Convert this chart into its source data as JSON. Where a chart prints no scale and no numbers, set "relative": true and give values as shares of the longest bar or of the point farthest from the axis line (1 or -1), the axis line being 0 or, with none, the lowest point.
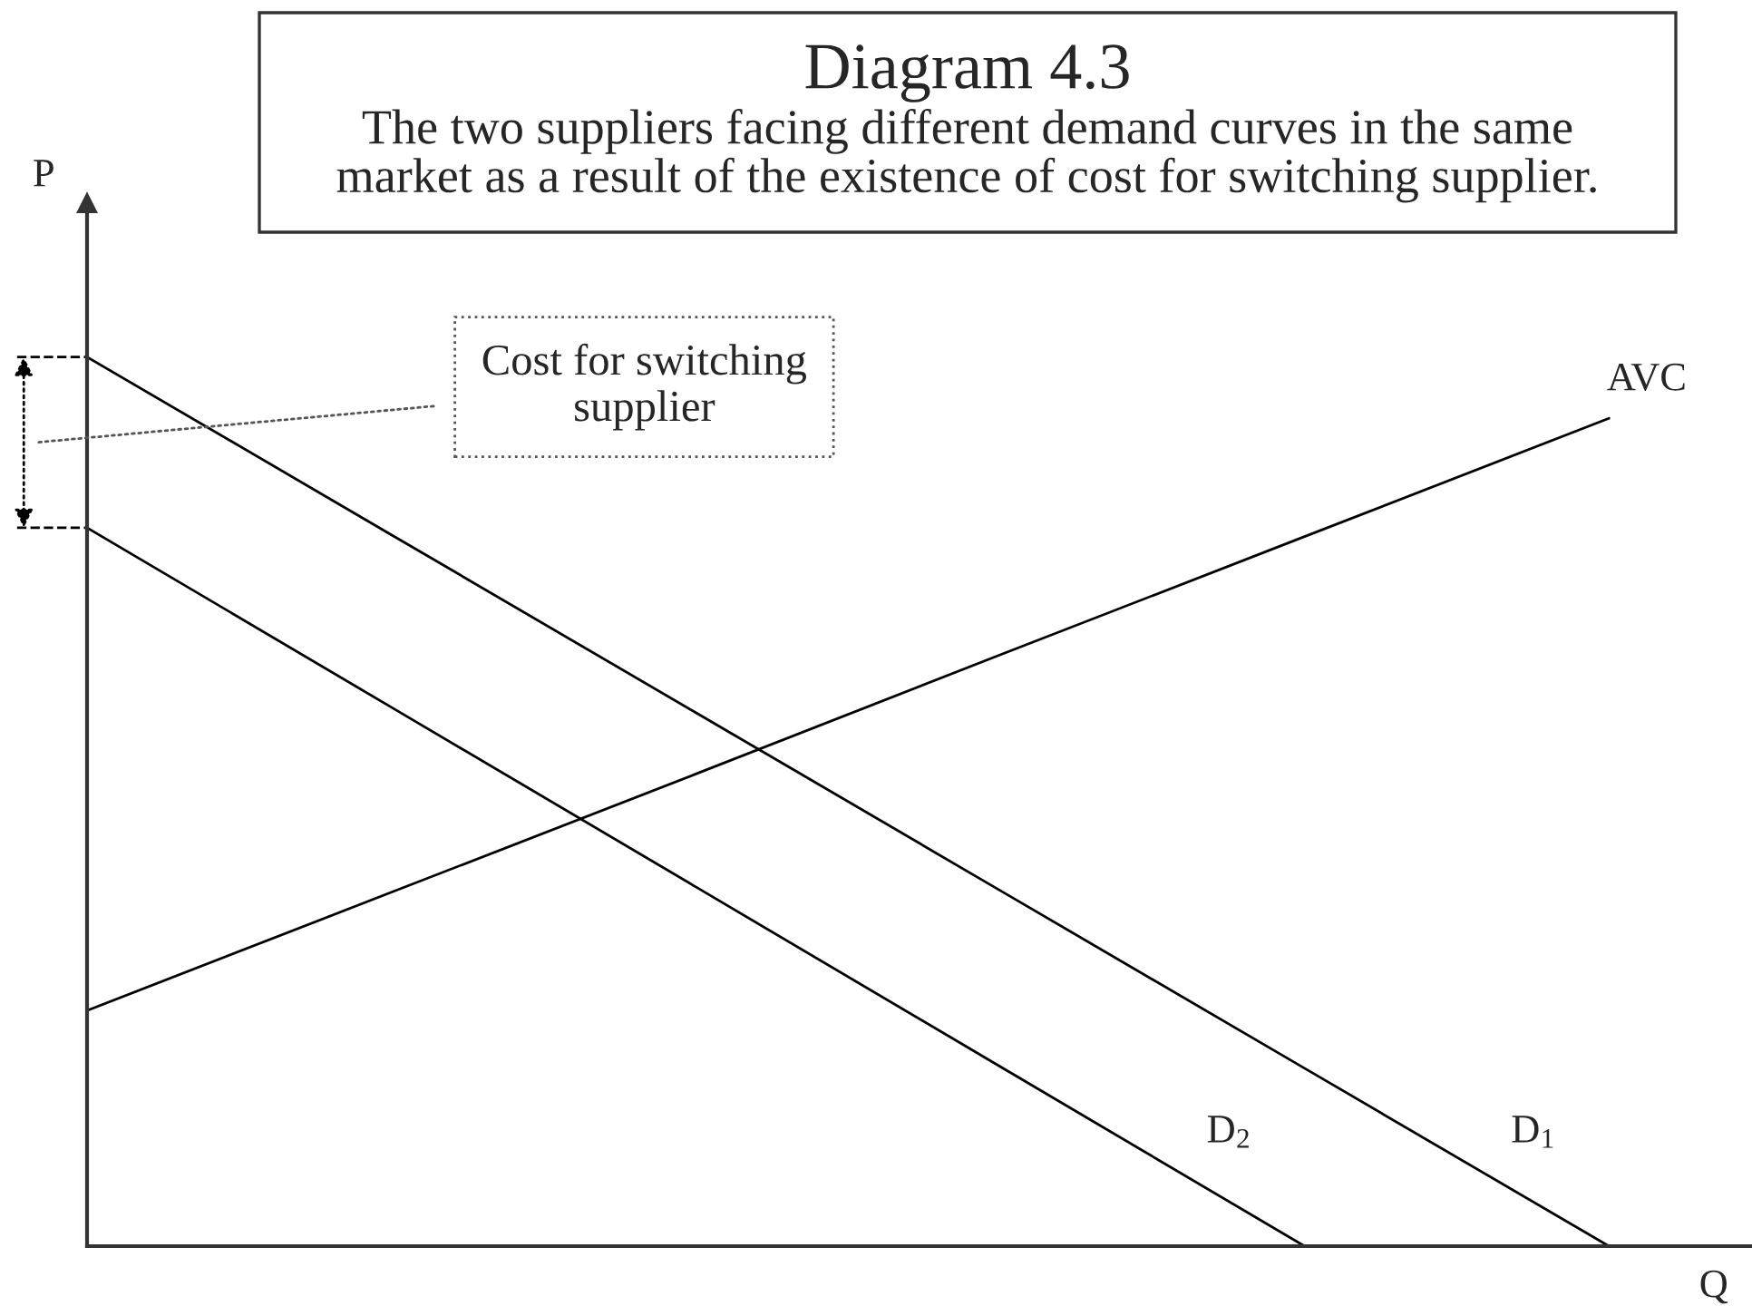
{
  "chart_data": {
    "type": "line",
    "title": "Diagram 4.3",
    "subtitle": "The two suppliers facing different demand curves in the same market as a result of the existence of cost for switching supplier.",
    "xlabel": "Q",
    "ylabel": "P",
    "relative": true,
    "categories": [
      null,
      null,
      null,
      null,
      null,
      null
    ],
    "series": [
      {
        "name": "D$_{1}$",
        "color": "#000000",
        "values": [
          1,
          0.8,
          0.6,
          0.4,
          0.2,
          0
        ]
      },
      {
        "name": "D$_{2}$",
        "color": "#000000",
        "values": [
          0.808,
          0.606,
          0.404,
          0.202,
          0,
          null
        ]
      },
      {
        "name": "AVC",
        "color": "#000000",
        "values": [
          0.265,
          0.398,
          0.531,
          0.665,
          0.798,
          0.931
        ]
      }
    ],
    "annotations": [
      "Cost for switching supplier"
    ],
    "line_style": "solid"
  }
}
